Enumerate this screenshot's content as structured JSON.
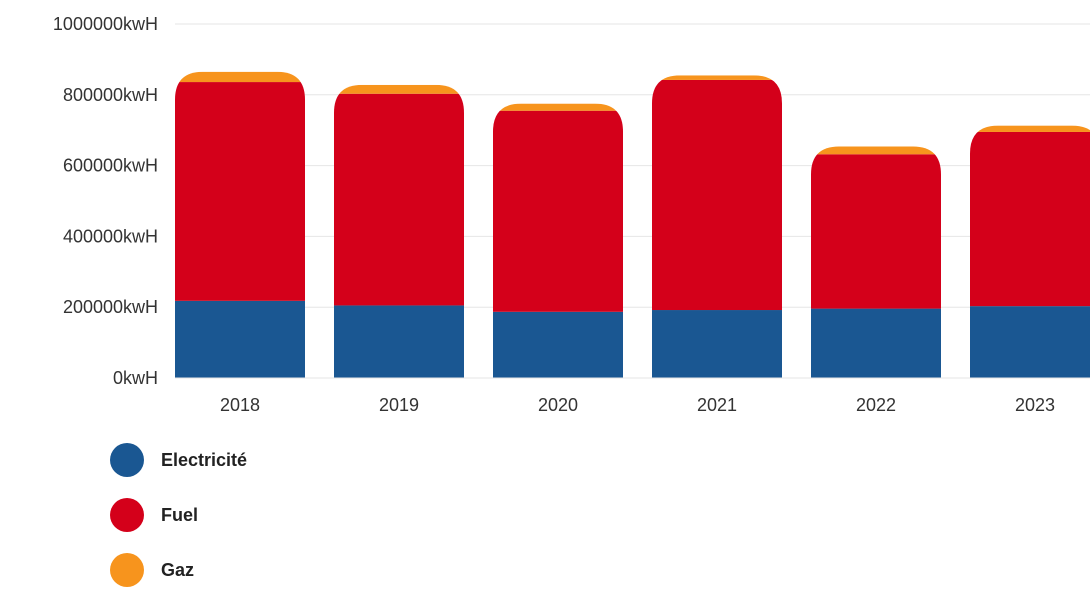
{
  "chart_data": {
    "type": "bar",
    "stacked": true,
    "categories": [
      "2018",
      "2019",
      "2020",
      "2021",
      "2022",
      "2023"
    ],
    "series": [
      {
        "name": "Electricité",
        "color": "#1a5792",
        "values": [
          218000,
          205000,
          187000,
          192000,
          196000,
          203000
        ]
      },
      {
        "name": "Fuel",
        "color": "#d4001a",
        "values": [
          618000,
          598000,
          568000,
          650000,
          436000,
          492000
        ]
      },
      {
        "name": "Gaz",
        "color": "#f7941d",
        "values": [
          29000,
          25000,
          20000,
          13000,
          22000,
          18000
        ]
      }
    ],
    "y_ticks": [
      "0kwH",
      "200000kwH",
      "400000kwH",
      "600000kwH",
      "800000kwH",
      "1000000kwH"
    ],
    "y_tick_values": [
      0,
      200000,
      400000,
      600000,
      800000,
      1000000
    ],
    "ylim": [
      0,
      1000000
    ],
    "grid": true,
    "legend_position": "bottom-left"
  }
}
